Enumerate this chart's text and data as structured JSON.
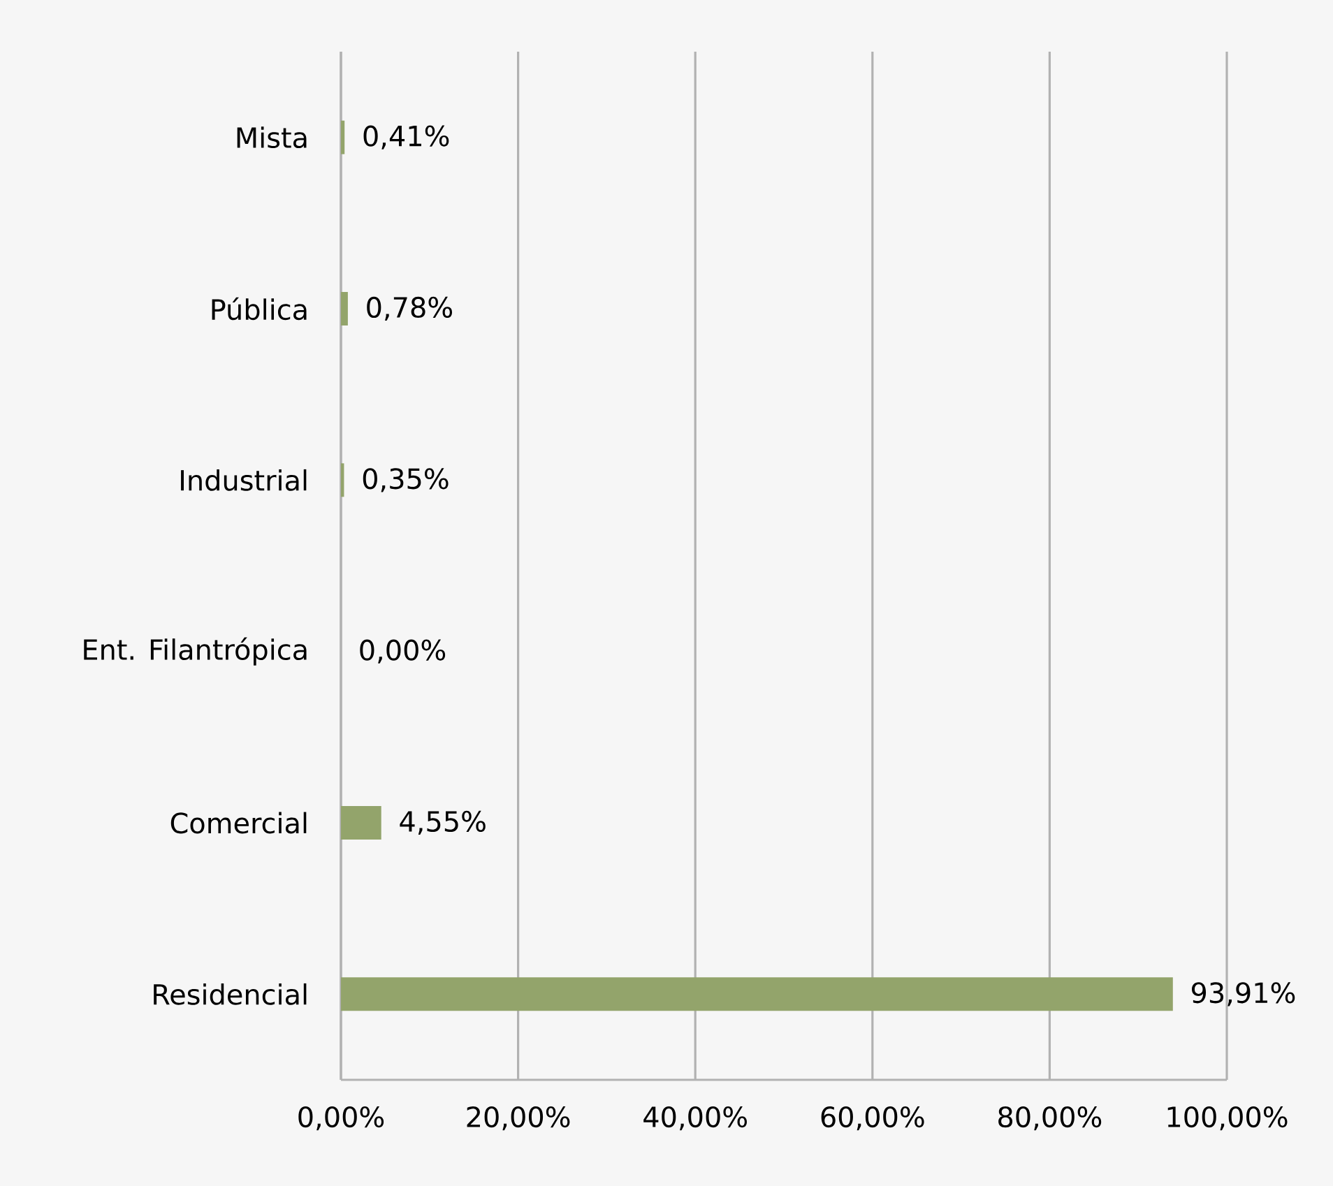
{
  "chart_data": {
    "type": "bar",
    "orientation": "horizontal",
    "categories": [
      "Mista",
      "Pública",
      "Industrial",
      "Ent. Filantrópica",
      "Comercial",
      "Residencial"
    ],
    "values": [
      0.41,
      0.78,
      0.35,
      0.0,
      4.55,
      93.91
    ],
    "value_labels": [
      "0,41%",
      "0,78%",
      "0,35%",
      "0,00%",
      "4,55%",
      "93,91%"
    ],
    "color": "#93a46b",
    "xlim": [
      0,
      100
    ],
    "xticks": [
      {
        "value": 0,
        "label": "0,00%"
      },
      {
        "value": 20,
        "label": "20,00%"
      },
      {
        "value": 40,
        "label": "40,00%"
      },
      {
        "value": 60,
        "label": "60,00%"
      },
      {
        "value": 80,
        "label": "80,00%"
      },
      {
        "value": 100,
        "label": "100,00%"
      }
    ],
    "grid": "x"
  }
}
